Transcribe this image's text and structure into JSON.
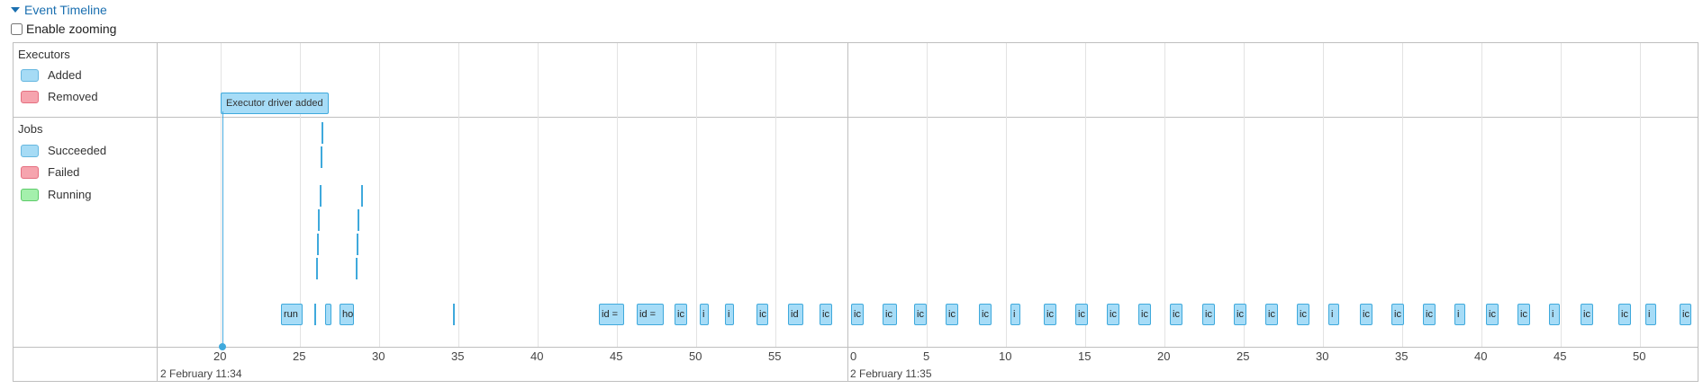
{
  "section": {
    "title": "Event Timeline"
  },
  "zoom": {
    "label": "Enable zooming",
    "checked": false
  },
  "groups": {
    "executors": {
      "title": "Executors",
      "added": "Added",
      "removed": "Removed"
    },
    "jobs": {
      "title": "Jobs",
      "succeeded": "Succeeded",
      "failed": "Failed",
      "running": "Running"
    }
  },
  "executor_event": {
    "label": "Executor driver added"
  },
  "job_labels": {
    "j1": "run",
    "j2": "ho",
    "j3": "id =",
    "j4": "id =",
    "short_a": "ic",
    "short_b": "i",
    "short_c": "id"
  },
  "axis": {
    "ticks_a": [
      "20",
      "25",
      "30",
      "35",
      "40",
      "45",
      "50",
      "55"
    ],
    "ticks_b": [
      "0",
      "5",
      "10",
      "15",
      "20",
      "25",
      "30",
      "35",
      "40",
      "45",
      "50"
    ],
    "date_a": "2 February 11:34",
    "date_b": "2 February 11:35"
  },
  "colors": {
    "added": "#a6dbf5",
    "removed": "#f6a4ae",
    "running": "#a4f0ac",
    "accent": "#1a6fb0"
  }
}
